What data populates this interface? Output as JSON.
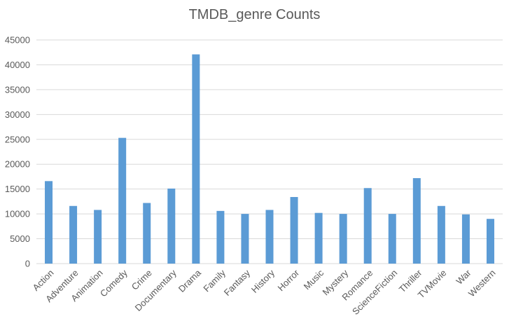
{
  "chart_data": {
    "type": "bar",
    "title": "TMDB_genre Counts",
    "xlabel": "",
    "ylabel": "",
    "categories": [
      "Action",
      "Adventure",
      "Animation",
      "Comedy",
      "Crime",
      "Documentary",
      "Drama",
      "Family",
      "Fantasy",
      "History",
      "Horror",
      "Music",
      "Mystery",
      "Romance",
      "ScienceFiction",
      "Thriller",
      "TVMovie",
      "War",
      "Western"
    ],
    "values": [
      16600,
      11600,
      10800,
      25300,
      12200,
      15100,
      42100,
      10600,
      10000,
      10800,
      13400,
      10200,
      10000,
      15200,
      10000,
      17200,
      11600,
      9900,
      9000
    ],
    "ylim": [
      0,
      45000
    ],
    "yticks": [
      0,
      5000,
      10000,
      15000,
      20000,
      25000,
      30000,
      35000,
      40000,
      45000
    ],
    "grid": true,
    "legend": "none",
    "bar_color": "#5B9BD5",
    "grid_color": "#D9D9D9",
    "text_color": "#595959"
  }
}
